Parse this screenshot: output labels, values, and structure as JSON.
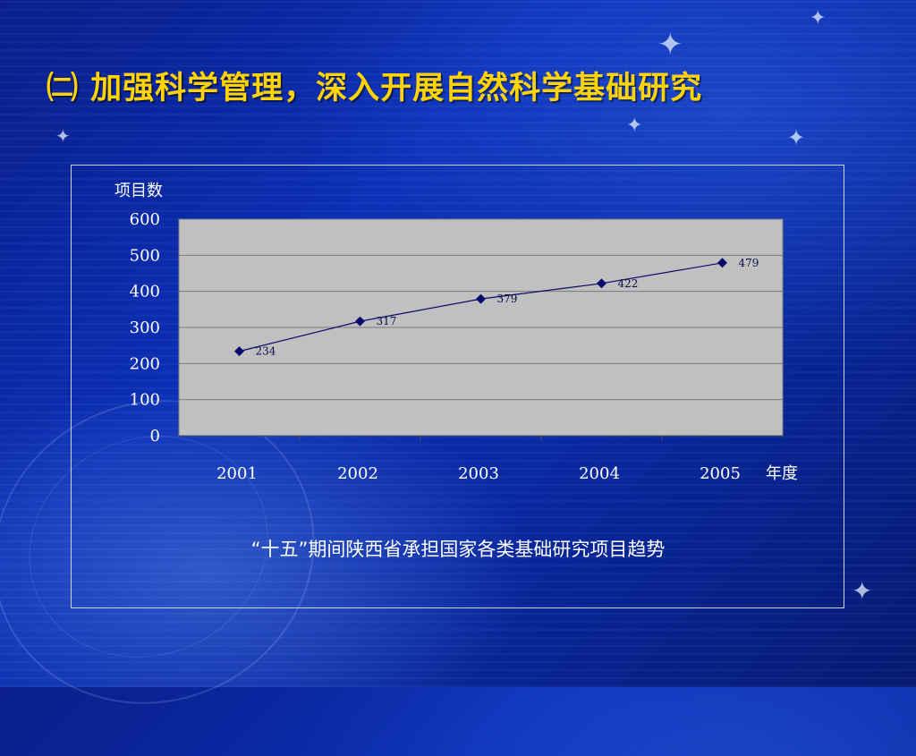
{
  "slide": {
    "title": "㈡ 加强科学管理，深入开展自然科学基础研究",
    "caption": "“十五”期间陕西省承担国家各类基础研究项目趋势"
  },
  "chart_data": {
    "type": "line",
    "x": [
      "2001",
      "2002",
      "2003",
      "2004",
      "2005"
    ],
    "series": [
      {
        "values": [
          234,
          317,
          379,
          422,
          479
        ],
        "color": "#0a0a6e"
      }
    ],
    "ylabel": "项目数",
    "xlabel": "年度",
    "ylim": [
      0,
      600
    ],
    "yticks": [
      0,
      100,
      200,
      300,
      400,
      500,
      600
    ],
    "grid": true,
    "plot_background": "#c0c0c0"
  }
}
